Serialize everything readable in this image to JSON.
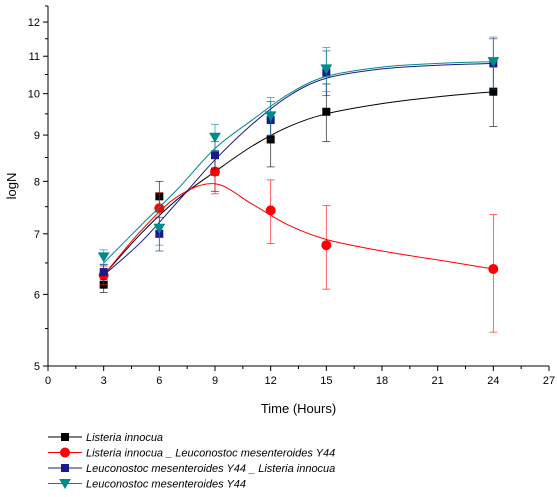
{
  "chart_data": {
    "type": "line",
    "xlabel": "Time (Hours)",
    "ylabel": "logN",
    "xlim": [
      0,
      27
    ],
    "ylim": [
      5,
      12.5
    ],
    "y_scale": "log",
    "x_ticks": [
      0,
      3,
      6,
      9,
      12,
      15,
      18,
      21,
      24,
      27
    ],
    "y_ticks": [
      5,
      6,
      7,
      8,
      9,
      10,
      11,
      12
    ],
    "x": [
      3,
      6,
      9,
      12,
      15,
      24
    ],
    "legend_position": "bottom-left",
    "series": [
      {
        "name": "Listeria innocua",
        "marker": "square",
        "color": "#000000",
        "values": [
          6.15,
          7.7,
          8.2,
          8.9,
          9.55,
          10.05
        ],
        "errors": [
          0.12,
          0.3,
          0.4,
          0.6,
          0.7,
          0.85
        ],
        "fit": [
          [
            3,
            6.3
          ],
          [
            5,
            7.0
          ],
          [
            7,
            7.65
          ],
          [
            9,
            8.2
          ],
          [
            11,
            8.75
          ],
          [
            13,
            9.2
          ],
          [
            15,
            9.5
          ],
          [
            18,
            9.75
          ],
          [
            21,
            9.92
          ],
          [
            24,
            10.05
          ]
        ]
      },
      {
        "name": "Listeria innocua _ Leuconostoc mesenteroides Y44",
        "marker": "circle",
        "color": "#ff0000",
        "values": [
          6.3,
          7.47,
          8.2,
          7.43,
          6.8,
          6.4
        ],
        "errors": [
          0.15,
          0.3,
          0.45,
          0.6,
          0.72,
          0.95
        ],
        "fit": [
          [
            3,
            6.3
          ],
          [
            5,
            7.05
          ],
          [
            7,
            7.7
          ],
          [
            9,
            7.95
          ],
          [
            11,
            7.55
          ],
          [
            13,
            7.15
          ],
          [
            15,
            6.9
          ],
          [
            18,
            6.7
          ],
          [
            21,
            6.55
          ],
          [
            24,
            6.4
          ]
        ]
      },
      {
        "name": "Leuconostoc mesenteroides Y44 _ Listeria innocua",
        "marker": "square",
        "color": "#1a1a8c",
        "values": [
          6.35,
          7.0,
          8.55,
          9.35,
          10.55,
          10.8
        ],
        "errors": [
          0.12,
          0.3,
          0.3,
          0.45,
          0.6,
          0.7
        ],
        "fit": [
          [
            3,
            6.3
          ],
          [
            5,
            6.85
          ],
          [
            7,
            7.6
          ],
          [
            9,
            8.45
          ],
          [
            11,
            9.25
          ],
          [
            13,
            9.95
          ],
          [
            15,
            10.4
          ],
          [
            18,
            10.65
          ],
          [
            21,
            10.75
          ],
          [
            24,
            10.8
          ]
        ]
      },
      {
        "name": "Leuconostoc mesenteroides Y44",
        "marker": "triangle-down",
        "color": "#008b8b",
        "values": [
          6.6,
          7.1,
          8.95,
          9.45,
          10.65,
          10.85
        ],
        "errors": [
          0.12,
          0.3,
          0.3,
          0.45,
          0.6,
          0.7
        ],
        "fit": [
          [
            3,
            6.5
          ],
          [
            5,
            7.15
          ],
          [
            7,
            7.85
          ],
          [
            9,
            8.7
          ],
          [
            11,
            9.35
          ],
          [
            13,
            10.0
          ],
          [
            15,
            10.45
          ],
          [
            18,
            10.7
          ],
          [
            21,
            10.8
          ],
          [
            24,
            10.85
          ]
        ]
      }
    ]
  }
}
